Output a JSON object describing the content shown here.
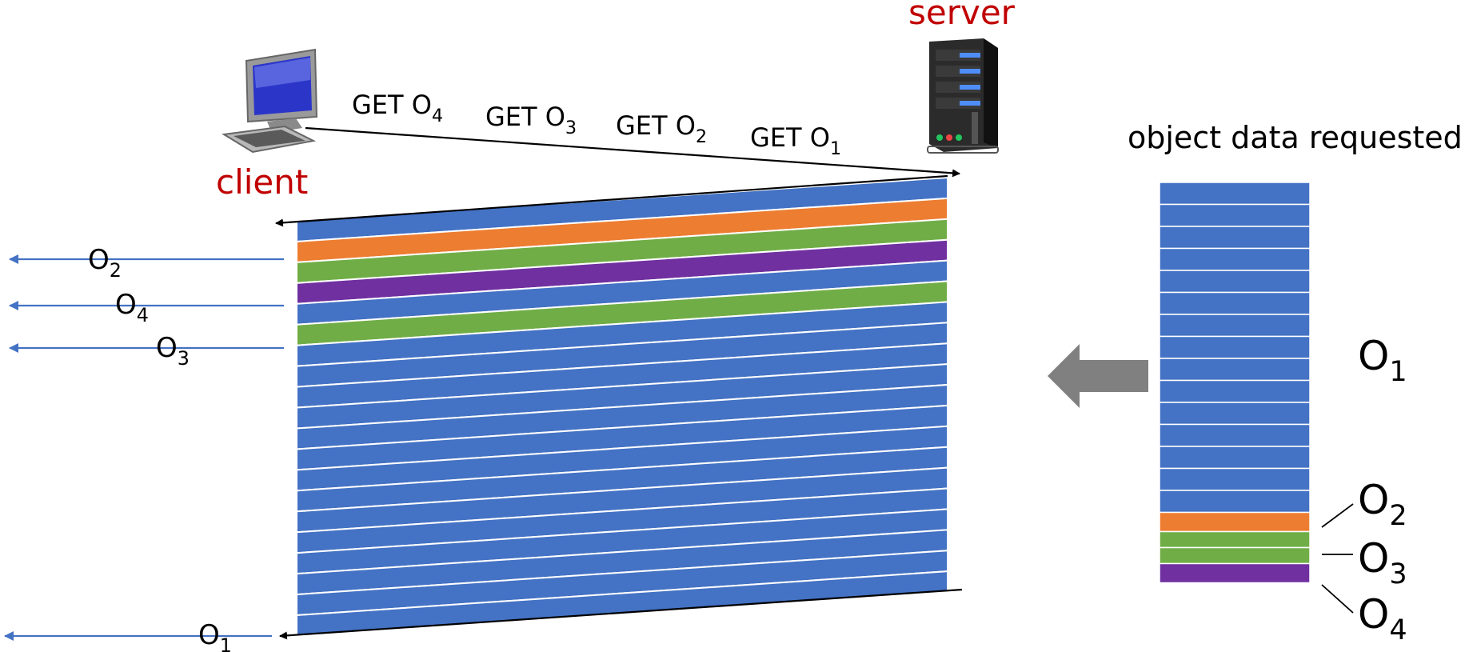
{
  "nodes": {
    "server_label": "server",
    "client_label": "client"
  },
  "requests": [
    {
      "prefix": "GET O",
      "sub": "4"
    },
    {
      "prefix": "GET O",
      "sub": "3"
    },
    {
      "prefix": "GET O",
      "sub": "2"
    },
    {
      "prefix": "GET O",
      "sub": "1"
    }
  ],
  "arrivals": [
    {
      "letter": "O",
      "sub": "2"
    },
    {
      "letter": "O",
      "sub": "4"
    },
    {
      "letter": "O",
      "sub": "3"
    },
    {
      "letter": "O",
      "sub": "1"
    }
  ],
  "queue": {
    "title": "object data requested",
    "labels": [
      {
        "letter": "O",
        "sub": "1"
      },
      {
        "letter": "O",
        "sub": "2"
      },
      {
        "letter": "O",
        "sub": "3"
      },
      {
        "letter": "O",
        "sub": "4"
      }
    ]
  },
  "colors": {
    "o1": "#4472c4",
    "o2": "#ed7d31",
    "o3": "#70ad47",
    "o4": "#7030a0",
    "arrow_blue": "#4472c4",
    "big_arrow": "#808080",
    "label_red": "#c00000"
  }
}
